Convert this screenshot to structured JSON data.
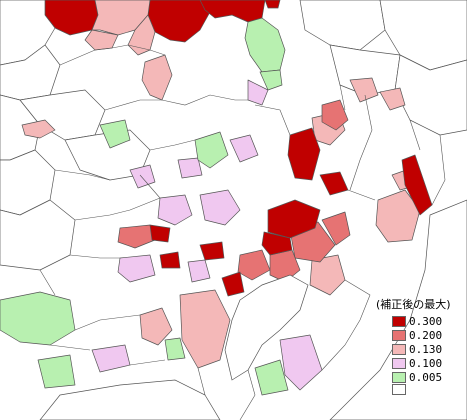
{
  "legend": {
    "title": "(補正後の最大)",
    "items": [
      {
        "label": "0.300",
        "color": "#c00000"
      },
      {
        "label": "0.200",
        "color": "#e67373"
      },
      {
        "label": "0.130",
        "color": "#f4b8b8"
      },
      {
        "label": "0.100",
        "color": "#f0c8f0"
      },
      {
        "label": "0.005",
        "color": "#b8f0b0"
      },
      {
        "label": "",
        "color": "#ffffff"
      }
    ]
  },
  "colors": {
    "border": "#555555",
    "background": "#ffffff"
  }
}
